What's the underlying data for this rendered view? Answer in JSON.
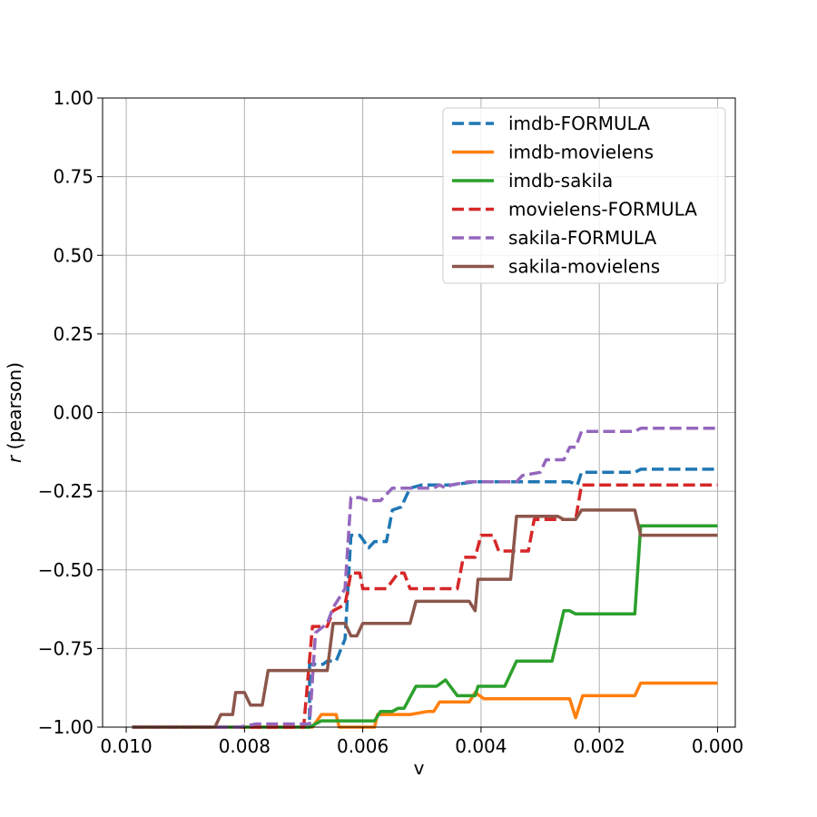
{
  "chart_data": {
    "type": "line",
    "title": "",
    "xlabel": "v",
    "ylabel_italic": "r",
    "ylabel_rest": " (pearson)",
    "xlim": [
      0.0104,
      -0.0003
    ],
    "ylim": [
      -1.0,
      1.0
    ],
    "x_ticks": [
      0.01,
      0.008,
      0.006,
      0.004,
      0.002,
      0.0
    ],
    "x_tick_labels": [
      "0.010",
      "0.008",
      "0.006",
      "0.004",
      "0.002",
      "0.000"
    ],
    "y_ticks": [
      -1.0,
      -0.75,
      -0.5,
      -0.25,
      0.0,
      0.25,
      0.5,
      0.75,
      1.0
    ],
    "y_tick_labels": [
      "−1.00",
      "−0.75",
      "−0.50",
      "−0.25",
      "0.00",
      "0.25",
      "0.50",
      "0.75",
      "1.00"
    ],
    "grid": true,
    "legend_position": "top-right",
    "series": [
      {
        "name": "imdb-FORMULA",
        "color": "#1f77b4",
        "dashed": true,
        "points": [
          [
            0.0099,
            -1.0
          ],
          [
            0.0069,
            -1.0
          ],
          [
            0.0069,
            -0.8
          ],
          [
            0.00667,
            -0.8
          ],
          [
            0.0066,
            -0.79
          ],
          [
            0.00645,
            -0.79
          ],
          [
            0.0063,
            -0.72
          ],
          [
            0.0062,
            -0.39
          ],
          [
            0.00605,
            -0.39
          ],
          [
            0.0059,
            -0.43
          ],
          [
            0.0058,
            -0.41
          ],
          [
            0.0056,
            -0.41
          ],
          [
            0.0055,
            -0.31
          ],
          [
            0.00535,
            -0.3
          ],
          [
            0.0052,
            -0.24
          ],
          [
            0.005,
            -0.23
          ],
          [
            0.0045,
            -0.23
          ],
          [
            0.0041,
            -0.22
          ],
          [
            0.0034,
            -0.22
          ],
          [
            0.0032,
            -0.22
          ],
          [
            0.0025,
            -0.22
          ],
          [
            0.00237,
            -0.23
          ],
          [
            0.0023,
            -0.19
          ],
          [
            0.0017,
            -0.19
          ],
          [
            0.0014,
            -0.19
          ],
          [
            0.0013,
            -0.18
          ],
          [
            0.0,
            -0.18
          ]
        ]
      },
      {
        "name": "imdb-movielens",
        "color": "#ff7f0e",
        "dashed": false,
        "points": [
          [
            0.0099,
            -1.0
          ],
          [
            0.00685,
            -1.0
          ],
          [
            0.0067,
            -0.96
          ],
          [
            0.00645,
            -0.96
          ],
          [
            0.0064,
            -1.0
          ],
          [
            0.0058,
            -1.0
          ],
          [
            0.00575,
            -0.96
          ],
          [
            0.0052,
            -0.96
          ],
          [
            0.0049,
            -0.95
          ],
          [
            0.0048,
            -0.95
          ],
          [
            0.0047,
            -0.92
          ],
          [
            0.0042,
            -0.92
          ],
          [
            0.0041,
            -0.89
          ],
          [
            0.00395,
            -0.91
          ],
          [
            0.0025,
            -0.91
          ],
          [
            0.0024,
            -0.97
          ],
          [
            0.00228,
            -0.9
          ],
          [
            0.0014,
            -0.9
          ],
          [
            0.0013,
            -0.86
          ],
          [
            0.0,
            -0.86
          ]
        ]
      },
      {
        "name": "imdb-sakila",
        "color": "#2ca02c",
        "dashed": false,
        "points": [
          [
            0.0099,
            -1.0
          ],
          [
            0.0069,
            -1.0
          ],
          [
            0.0067,
            -0.98
          ],
          [
            0.0059,
            -0.98
          ],
          [
            0.0058,
            -0.98
          ],
          [
            0.0057,
            -0.95
          ],
          [
            0.0055,
            -0.95
          ],
          [
            0.0054,
            -0.94
          ],
          [
            0.0053,
            -0.94
          ],
          [
            0.0051,
            -0.87
          ],
          [
            0.00475,
            -0.87
          ],
          [
            0.0046,
            -0.85
          ],
          [
            0.0044,
            -0.9
          ],
          [
            0.0041,
            -0.9
          ],
          [
            0.00405,
            -0.87
          ],
          [
            0.0036,
            -0.87
          ],
          [
            0.0034,
            -0.79
          ],
          [
            0.0028,
            -0.79
          ],
          [
            0.0026,
            -0.63
          ],
          [
            0.0025,
            -0.63
          ],
          [
            0.0024,
            -0.64
          ],
          [
            0.0014,
            -0.64
          ],
          [
            0.0013,
            -0.36
          ],
          [
            0.0,
            -0.36
          ]
        ]
      },
      {
        "name": "movielens-FORMULA",
        "color": "#d62728",
        "dashed": true,
        "points": [
          [
            0.0099,
            -1.0
          ],
          [
            0.007,
            -1.0
          ],
          [
            0.00685,
            -0.68
          ],
          [
            0.0066,
            -0.68
          ],
          [
            0.0065,
            -0.63
          ],
          [
            0.0063,
            -0.61
          ],
          [
            0.0062,
            -0.51
          ],
          [
            0.00605,
            -0.51
          ],
          [
            0.006,
            -0.56
          ],
          [
            0.0056,
            -0.56
          ],
          [
            0.0054,
            -0.51
          ],
          [
            0.0053,
            -0.51
          ],
          [
            0.0052,
            -0.56
          ],
          [
            0.0044,
            -0.56
          ],
          [
            0.0043,
            -0.46
          ],
          [
            0.0041,
            -0.46
          ],
          [
            0.004,
            -0.39
          ],
          [
            0.0038,
            -0.39
          ],
          [
            0.0037,
            -0.44
          ],
          [
            0.0036,
            -0.44
          ],
          [
            0.0035,
            -0.44
          ],
          [
            0.0032,
            -0.44
          ],
          [
            0.0031,
            -0.34
          ],
          [
            0.0024,
            -0.34
          ],
          [
            0.0023,
            -0.23
          ],
          [
            0.0,
            -0.23
          ]
        ]
      },
      {
        "name": "sakila-FORMULA",
        "color": "#9467bd",
        "dashed": true,
        "points": [
          [
            0.0099,
            -1.0
          ],
          [
            0.0081,
            -1.0
          ],
          [
            0.0078,
            -0.99
          ],
          [
            0.0069,
            -0.99
          ],
          [
            0.0068,
            -0.7
          ],
          [
            0.0066,
            -0.67
          ],
          [
            0.0065,
            -0.62
          ],
          [
            0.0063,
            -0.56
          ],
          [
            0.0062,
            -0.27
          ],
          [
            0.00605,
            -0.27
          ],
          [
            0.0059,
            -0.28
          ],
          [
            0.0057,
            -0.28
          ],
          [
            0.0055,
            -0.24
          ],
          [
            0.0049,
            -0.24
          ],
          [
            0.0048,
            -0.24
          ],
          [
            0.0047,
            -0.23
          ],
          [
            0.0046,
            -0.24
          ],
          [
            0.0045,
            -0.23
          ],
          [
            0.0042,
            -0.22
          ],
          [
            0.0034,
            -0.22
          ],
          [
            0.0033,
            -0.2
          ],
          [
            0.003,
            -0.19
          ],
          [
            0.0029,
            -0.15
          ],
          [
            0.0026,
            -0.15
          ],
          [
            0.0025,
            -0.11
          ],
          [
            0.0024,
            -0.11
          ],
          [
            0.0023,
            -0.06
          ],
          [
            0.0017,
            -0.06
          ],
          [
            0.0014,
            -0.06
          ],
          [
            0.0013,
            -0.05
          ],
          [
            0.0,
            -0.05
          ]
        ]
      },
      {
        "name": "sakila-movielens",
        "color": "#8c564b",
        "dashed": false,
        "points": [
          [
            0.0099,
            -1.0
          ],
          [
            0.0085,
            -1.0
          ],
          [
            0.0084,
            -0.96
          ],
          [
            0.0082,
            -0.96
          ],
          [
            0.00815,
            -0.89
          ],
          [
            0.008,
            -0.89
          ],
          [
            0.0079,
            -0.93
          ],
          [
            0.0077,
            -0.93
          ],
          [
            0.0076,
            -0.82
          ],
          [
            0.0066,
            -0.82
          ],
          [
            0.0065,
            -0.67
          ],
          [
            0.0063,
            -0.67
          ],
          [
            0.0062,
            -0.71
          ],
          [
            0.0061,
            -0.71
          ],
          [
            0.006,
            -0.67
          ],
          [
            0.0056,
            -0.67
          ],
          [
            0.0052,
            -0.67
          ],
          [
            0.0051,
            -0.6
          ],
          [
            0.0042,
            -0.6
          ],
          [
            0.0041,
            -0.63
          ],
          [
            0.00405,
            -0.53
          ],
          [
            0.0035,
            -0.53
          ],
          [
            0.0034,
            -0.33
          ],
          [
            0.0027,
            -0.33
          ],
          [
            0.0026,
            -0.34
          ],
          [
            0.0024,
            -0.34
          ],
          [
            0.0023,
            -0.31
          ],
          [
            0.0014,
            -0.31
          ],
          [
            0.0013,
            -0.39
          ],
          [
            0.0,
            -0.39
          ]
        ]
      }
    ]
  }
}
